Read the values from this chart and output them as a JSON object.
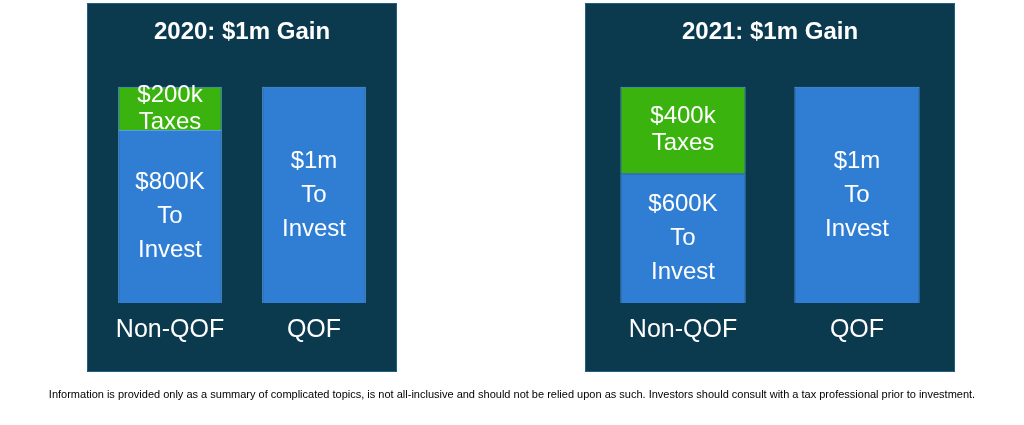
{
  "chart_data": [
    {
      "type": "bar",
      "title": "2020: $1m Gain",
      "categories": [
        "Non-QOF",
        "QOF"
      ],
      "stacked": true,
      "ylim": [
        0,
        1000000
      ],
      "tick_labels": "x",
      "grid": false,
      "legend": false,
      "series": [
        {
          "color": "#2f7ed4",
          "values": [
            800000,
            1000000
          ],
          "value_labels": [
            "$800K\nTo\nInvest",
            "$1m\nTo\nInvest"
          ]
        },
        {
          "color": "#3bb30f",
          "values": [
            200000,
            null
          ],
          "value_labels": [
            "$200k\nTaxes",
            null
          ]
        }
      ]
    },
    {
      "type": "bar",
      "title": "2021: $1m Gain",
      "categories": [
        "Non-QOF",
        "QOF"
      ],
      "stacked": true,
      "ylim": [
        0,
        1000000
      ],
      "tick_labels": "x",
      "grid": false,
      "legend": false,
      "series": [
        {
          "color": "#2f7ed4",
          "values": [
            600000,
            1000000
          ],
          "value_labels": [
            "$600K\nTo\nInvest",
            "$1m\nTo\nInvest"
          ]
        },
        {
          "color": "#3bb30f",
          "values": [
            400000,
            null
          ],
          "value_labels": [
            "$400k\nTaxes",
            null
          ]
        }
      ],
      "annotations": [
        "Information is provided only as a summary of complicated topics, is not all-inclusive and should not be relied upon as such. Investors should consult with a tax professional prior to investment."
      ]
    }
  ]
}
